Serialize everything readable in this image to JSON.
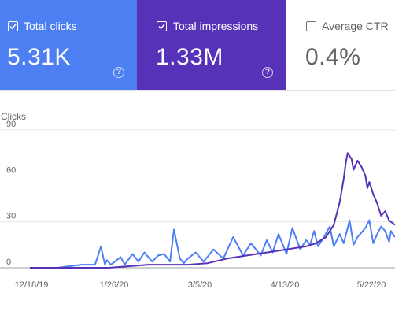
{
  "metrics": [
    {
      "label": "Total clicks",
      "value": "5.31K",
      "checked": true,
      "color": "#4e7ff2"
    },
    {
      "label": "Total impressions",
      "value": "1.33M",
      "checked": true,
      "color": "#5632b8"
    },
    {
      "label": "Average CTR",
      "value": "0.4%",
      "checked": false
    }
  ],
  "help_glyph": "?",
  "chart_data": {
    "type": "line",
    "ylabel": "Clicks",
    "ylim": [
      0,
      90
    ],
    "y_ticks": [
      "0",
      "30",
      "60",
      "90"
    ],
    "x_tick_labels": [
      "12/18/19",
      "1/26/20",
      "3/5/20",
      "4/13/20",
      "5/22/20"
    ],
    "grid": true,
    "series": [
      {
        "color": "#4e7ff2",
        "x": [
          0,
          14,
          26,
          33,
          36,
          38,
          39,
          41,
          46,
          48,
          52,
          55,
          58,
          62,
          65,
          68,
          71,
          73,
          76,
          78,
          80,
          82,
          84,
          88,
          93,
          98,
          103,
          108,
          112,
          117,
          120,
          123,
          126,
          130,
          133,
          137,
          140,
          142,
          144,
          146,
          149,
          152,
          154,
          157,
          159,
          162,
          164,
          166,
          168,
          170,
          172,
          174,
          176,
          178,
          180,
          182,
          183,
          185
        ],
        "values": [
          0,
          0,
          2,
          2,
          14,
          2,
          5,
          2,
          7,
          2,
          9,
          4,
          10,
          4,
          8,
          9,
          4,
          25,
          6,
          3,
          6,
          8,
          10,
          4,
          12,
          6,
          20,
          8,
          16,
          8,
          18,
          10,
          22,
          9,
          26,
          12,
          18,
          15,
          24,
          14,
          20,
          27,
          14,
          22,
          16,
          31,
          15,
          20,
          23,
          26,
          31,
          16,
          22,
          27,
          24,
          17,
          24,
          20
        ]
      },
      {
        "color": "#5632b8",
        "x": [
          0,
          40,
          60,
          80,
          90,
          100,
          110,
          120,
          130,
          140,
          145,
          150,
          154,
          157,
          159,
          160,
          161,
          163,
          164,
          166,
          168,
          170,
          171,
          172,
          174,
          176,
          178,
          180,
          182,
          185
        ],
        "values": [
          0,
          0,
          2,
          2,
          3,
          6,
          8,
          10,
          12,
          14,
          16,
          20,
          28,
          43,
          58,
          68,
          75,
          71,
          64,
          70,
          66,
          60,
          52,
          56,
          48,
          42,
          34,
          37,
          31,
          28
        ]
      }
    ]
  }
}
